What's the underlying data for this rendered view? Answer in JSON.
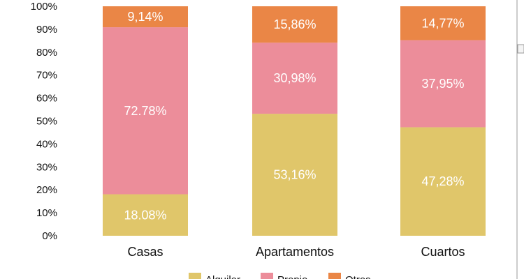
{
  "chart_data": {
    "type": "stacked-bar-100",
    "categories": [
      "Casas",
      "Apartamentos",
      "Cuartos"
    ],
    "series": [
      {
        "name": "Alquiler",
        "color": "#E0C66A",
        "values": [
          18.08,
          53.16,
          47.28
        ],
        "labels": [
          "18.08%",
          "53,16%",
          "47,28%"
        ]
      },
      {
        "name": "Propio",
        "color": "#EC8D9A",
        "values": [
          72.78,
          30.98,
          37.95
        ],
        "labels": [
          "72.78%",
          "30,98%",
          "37,95%"
        ]
      },
      {
        "name": "Otros",
        "color": "#EA8646",
        "values": [
          9.14,
          15.86,
          14.77
        ],
        "labels": [
          "9,14%",
          "15,86%",
          "14,77%"
        ]
      }
    ],
    "yticks": [
      "0%",
      "10%",
      "20%",
      "30%",
      "40%",
      "50%",
      "60%",
      "70%",
      "80%",
      "90%",
      "100%"
    ],
    "ylim": [
      0,
      100
    ],
    "title": "",
    "xlabel": "",
    "ylabel": "",
    "legend_position": "bottom"
  }
}
